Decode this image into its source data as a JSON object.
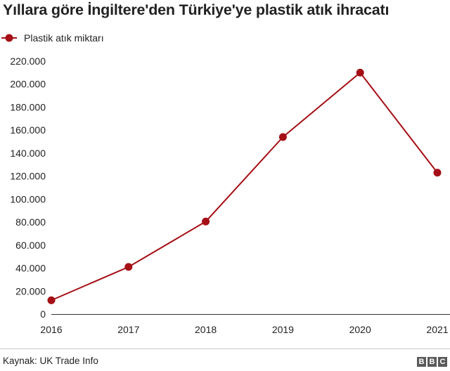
{
  "title": "Yıllara göre İngiltere'den Türkiye'ye plastik atık ihracatı",
  "source": "Kaynak: UK Trade Info",
  "logo": [
    "B",
    "B",
    "C"
  ],
  "colors": {
    "series": "#a50f15",
    "axis": "#333333",
    "grid": "#dddddd"
  },
  "chart_data": {
    "type": "line",
    "x": [
      "2016",
      "2017",
      "2018",
      "2019",
      "2020",
      "2021"
    ],
    "series": [
      {
        "name": "Plastik atık miktarı",
        "values": [
          12000,
          41000,
          80500,
          154000,
          210000,
          123000
        ]
      }
    ],
    "yticks": [
      "0",
      "20.000",
      "40.000",
      "60.000",
      "80.000",
      "100.000",
      "120.000",
      "140.000",
      "160.000",
      "180.000",
      "200.000",
      "220.000"
    ],
    "ylim": [
      0,
      220000
    ],
    "grid": false,
    "legend": "top-left"
  }
}
